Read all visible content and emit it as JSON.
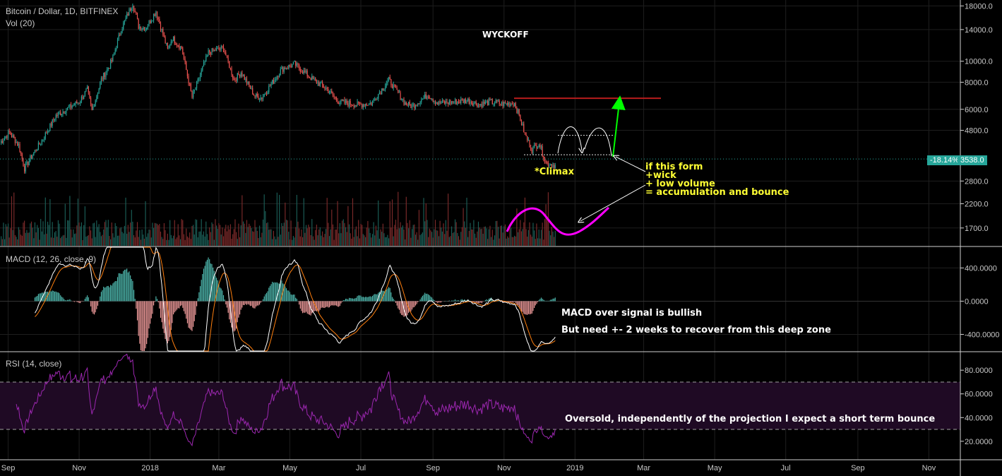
{
  "header": {
    "symbol": "Bitcoin / Dollar, 1D, BITFINEX",
    "volume_indicator": "Vol (20)",
    "macd_indicator": "MACD (12, 26, close, 9)",
    "rsi_indicator": "RSI (14, close)"
  },
  "annotations": {
    "wyckoff": "WYCKOFF",
    "climax": "*Climax",
    "accumulation": [
      "if this form",
      "+wick",
      "+ low volume",
      "= accumulation and bounce"
    ],
    "macd_note_1": "MACD over signal is bullish",
    "macd_note_2": "But need +- 2 weeks to recover from this deep zone",
    "rsi_note": "Oversold, independently of the projection I expect a short term bounce"
  },
  "last_price": {
    "change": "-18.14%",
    "price": "3538.0",
    "value": 3538
  },
  "colors": {
    "up": "#26a69a",
    "down": "#ef5350",
    "resistance": "#b71c1c",
    "arrow_up": "#00ff00",
    "projection": "#ff00ff",
    "macd_line": "#ffffff",
    "signal_line": "#ff7f0e",
    "rsi_line": "#9c27b0",
    "note_yellow": "#ffff33",
    "badge": "#26a69a"
  },
  "chart_data": [
    {
      "type": "line",
      "panel": "price",
      "yscale": "log",
      "ylim": [
        1450,
        18600
      ],
      "y_ticks": [
        {
          "value": 1700,
          "label": "1700.0"
        },
        {
          "value": 2200,
          "label": "2200.0"
        },
        {
          "value": 2800,
          "label": "2800.0"
        },
        {
          "value": 4800,
          "label": "4800.0"
        },
        {
          "value": 6000,
          "label": "6000.0"
        },
        {
          "value": 8000,
          "label": "8000.0"
        },
        {
          "value": 10000,
          "label": "10000.0"
        },
        {
          "value": 14000,
          "label": "14000.0"
        },
        {
          "value": 18000,
          "label": "18000.0"
        }
      ],
      "x_ticks": [
        {
          "date": "2017-09-01",
          "label": "Sep"
        },
        {
          "date": "2017-11-01",
          "label": "Nov"
        },
        {
          "date": "2018-01-01",
          "label": "2018"
        },
        {
          "date": "2018-03-01",
          "label": "Mar"
        },
        {
          "date": "2018-05-01",
          "label": "May"
        },
        {
          "date": "2018-07-01",
          "label": "Jul"
        },
        {
          "date": "2018-09-01",
          "label": "Sep"
        },
        {
          "date": "2018-11-01",
          "label": "Nov"
        },
        {
          "date": "2019-01-01",
          "label": "2019"
        },
        {
          "date": "2019-03-01",
          "label": "Mar"
        },
        {
          "date": "2019-05-01",
          "label": "May"
        },
        {
          "date": "2019-07-01",
          "label": "Jul"
        },
        {
          "date": "2019-09-01",
          "label": "Sep"
        },
        {
          "date": "2019-11-01",
          "label": "Nov"
        }
      ],
      "series": [
        {
          "x": [
            "2017-08-25",
            "2017-09-02",
            "2017-09-10",
            "2017-09-15",
            "2017-09-22",
            "2017-10-01",
            "2017-10-12",
            "2017-10-21",
            "2017-11-01",
            "2017-11-08",
            "2017-11-12",
            "2017-11-20",
            "2017-11-29",
            "2017-12-07",
            "2017-12-17",
            "2017-12-22",
            "2017-12-28",
            "2018-01-06",
            "2018-01-16",
            "2018-01-20",
            "2018-01-28",
            "2018-02-06",
            "2018-02-20",
            "2018-03-05",
            "2018-03-14",
            "2018-03-20",
            "2018-04-01",
            "2018-04-07",
            "2018-04-24",
            "2018-05-05",
            "2018-05-20",
            "2018-06-01",
            "2018-06-12",
            "2018-06-29",
            "2018-07-10",
            "2018-07-25",
            "2018-08-08",
            "2018-08-14",
            "2018-08-28",
            "2018-09-05",
            "2018-09-20",
            "2018-10-01",
            "2018-10-11",
            "2018-10-20",
            "2018-11-01",
            "2018-11-10",
            "2018-11-14",
            "2018-11-19",
            "2018-11-25",
            "2018-12-01",
            "2018-12-07",
            "2018-12-15"
          ],
          "y": [
            4200,
            4700,
            4100,
            3200,
            3700,
            4400,
            5600,
            6000,
            6500,
            7400,
            5900,
            8200,
            10000,
            14000,
            18600,
            14500,
            14200,
            17000,
            11300,
            12800,
            11500,
            6800,
            11000,
            11500,
            8200,
            8900,
            6900,
            6800,
            9200,
            9700,
            8300,
            7500,
            6500,
            6300,
            6400,
            8200,
            6400,
            6200,
            7000,
            6400,
            6500,
            6600,
            6300,
            6500,
            6350,
            6400,
            5600,
            4600,
            3900,
            4200,
            3400,
            3300
          ]
        }
      ],
      "resistance_level": 6750,
      "range_high": 4550,
      "range_low": 3700
    },
    {
      "type": "bar",
      "panel": "volume",
      "note": "volume bars shown without axis"
    },
    {
      "type": "line",
      "panel": "macd",
      "ylim": [
        -600,
        650
      ],
      "y_ticks": [
        {
          "value": 400,
          "label": "400.0000"
        },
        {
          "value": 0,
          "label": "0.0000"
        },
        {
          "value": -400,
          "label": "-400.0000"
        }
      ]
    },
    {
      "type": "line",
      "panel": "rsi",
      "ylim": [
        5,
        95
      ],
      "overbought": 70,
      "oversold": 30,
      "y_ticks": [
        {
          "value": 20,
          "label": "20.0000"
        },
        {
          "value": 40,
          "label": "40.0000"
        },
        {
          "value": 60,
          "label": "60.0000"
        },
        {
          "value": 80,
          "label": "80.0000"
        }
      ]
    }
  ]
}
